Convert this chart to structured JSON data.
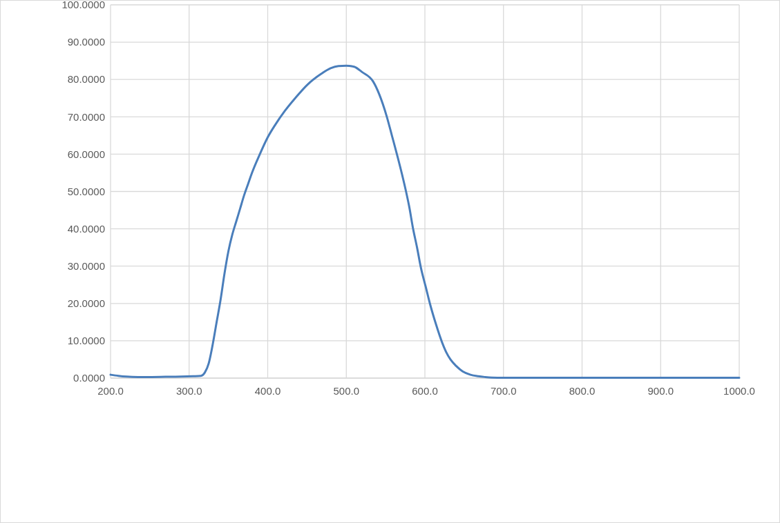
{
  "chart_data": {
    "type": "line",
    "x": [
      200,
      210,
      220,
      235,
      250,
      270,
      290,
      305,
      315,
      320,
      325,
      330,
      335,
      340,
      345,
      350,
      355,
      360,
      365,
      370,
      375,
      380,
      390,
      400,
      410,
      421.5,
      435,
      450,
      468,
      480,
      490,
      500,
      510,
      520,
      534,
      542,
      551.6,
      558,
      565,
      571,
      576,
      580,
      585,
      590,
      595,
      601,
      607,
      614,
      622,
      627,
      632.5,
      640,
      648,
      658,
      668,
      676,
      685,
      700,
      750,
      800,
      850,
      900,
      950,
      1000
    ],
    "series": [
      {
        "color": "#4a7ebb",
        "values": [
          0.9,
          0.6,
          0.4,
          0.3,
          0.3,
          0.35,
          0.4,
          0.5,
          0.6,
          1.5,
          4,
          9,
          15,
          21,
          28,
          34,
          38.5,
          42,
          45.5,
          49,
          52,
          55,
          60,
          64.5,
          68,
          71.5,
          75,
          78.5,
          81.5,
          83,
          83.6,
          83.7,
          83.4,
          82,
          79.5,
          76,
          70,
          65,
          59.5,
          54.5,
          50,
          46,
          40,
          35,
          29.5,
          24.5,
          19.5,
          14.5,
          9.5,
          7,
          5,
          3.2,
          1.8,
          0.9,
          0.5,
          0.3,
          0.15,
          0.1,
          0.1,
          0.1,
          0.1,
          0.1,
          0.1,
          0.1
        ]
      }
    ],
    "xlim": [
      200,
      1000
    ],
    "xticks": [
      {
        "value": 200,
        "label": "200.0"
      },
      {
        "value": 300,
        "label": "300.0"
      },
      {
        "value": 400,
        "label": "400.0"
      },
      {
        "value": 500,
        "label": "500.0"
      },
      {
        "value": 600,
        "label": "600.0"
      },
      {
        "value": 700,
        "label": "700.0"
      },
      {
        "value": 800,
        "label": "800.0"
      },
      {
        "value": 900,
        "label": "900.0"
      },
      {
        "value": 1000,
        "label": "1000.0"
      }
    ],
    "ylim": [
      0,
      100
    ],
    "yticks": [
      {
        "value": 0,
        "label": "0.0000"
      },
      {
        "value": 10,
        "label": "10.0000"
      },
      {
        "value": 20,
        "label": "20.0000"
      },
      {
        "value": 30,
        "label": "30.0000"
      },
      {
        "value": 40,
        "label": "40.0000"
      },
      {
        "value": 50,
        "label": "50.0000"
      },
      {
        "value": 60,
        "label": "60.0000"
      },
      {
        "value": 70,
        "label": "70.0000"
      },
      {
        "value": 80,
        "label": "80.0000"
      },
      {
        "value": 90,
        "label": "90.0000"
      },
      {
        "value": 100,
        "label": "100.0000"
      }
    ],
    "grid": true
  }
}
